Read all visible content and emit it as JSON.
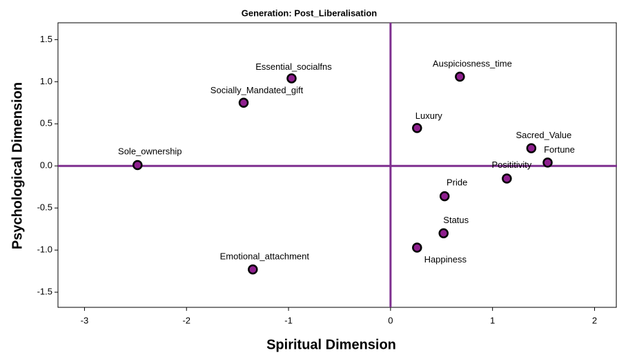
{
  "chart_data": {
    "type": "scatter",
    "title": "Generation: Post_Liberalisation",
    "xlabel": "Spiritual Dimension",
    "ylabel": "Psychological Dimension",
    "labels": [
      "Essential_socialfns",
      "Socially_Mandated_gift",
      "Sole_ownership",
      "Emotional_attachment",
      "Auspiciosness_time",
      "Luxury",
      "Sacred_Value",
      "Fortune",
      "Posititivity",
      "Pride",
      "Status",
      "Happiness"
    ],
    "x": [
      -0.97,
      -1.44,
      -2.48,
      -1.35,
      0.68,
      0.26,
      1.38,
      1.54,
      1.14,
      0.53,
      0.52,
      0.26
    ],
    "y": [
      1.04,
      0.75,
      0.01,
      -1.23,
      1.06,
      0.45,
      0.21,
      0.04,
      -0.15,
      -0.36,
      -0.8,
      -0.97
    ],
    "color": "#8e1f8e",
    "reference_color": "#7f2f8f",
    "vline": 0,
    "hline": 0,
    "xlim": [
      -3.26,
      2.22
    ],
    "ylim": [
      -1.68,
      1.7
    ],
    "xticks": [
      -3,
      -2,
      -1,
      0,
      1,
      2
    ],
    "yticks": [
      1.5,
      {
        "value": 1.0,
        "label": "1.0"
      },
      0.5,
      {
        "value": 0.0,
        "label": "0.0"
      },
      -0.5,
      {
        "value": -1.0,
        "label": "-1.0"
      },
      -1.5
    ]
  }
}
